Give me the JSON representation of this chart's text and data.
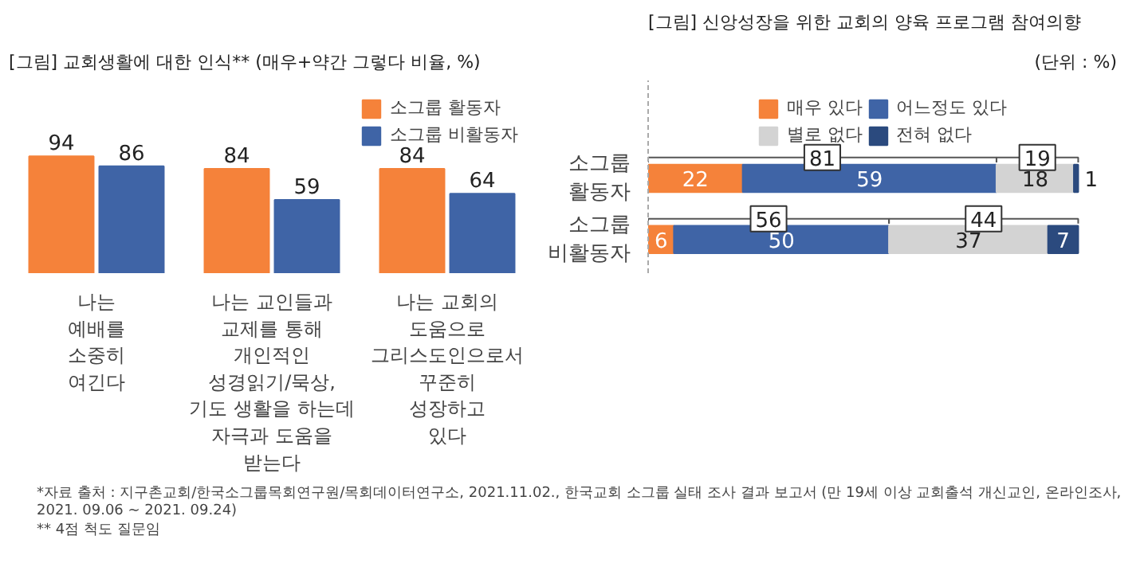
{
  "chart_data": [
    {
      "type": "bar",
      "title": "[그림] 교회생활에 대한 인식** (매우+약간 그렇다 비율, %)",
      "categories": [
        "나는\n예배를\n소중히\n여긴다",
        "나는 교인들과\n교제를 통해\n개인적인\n성경읽기/묵상,\n기도 생활을 하는데\n자극과 도움을\n받는다",
        "나는 교회의\n도움으로\n그리스도인으로서\n꾸준히\n성장하고\n있다"
      ],
      "series": [
        {
          "name": "소그룹 활동자",
          "color": "#f5823a",
          "values": [
            94,
            84,
            84
          ]
        },
        {
          "name": "소그룹 비활동자",
          "color": "#3f64a6",
          "values": [
            86,
            59,
            64
          ]
        }
      ],
      "data_labels": true,
      "legend": "top right",
      "annotations": [
        "*자료 출처 : 지구촌교회/한국소그룹목회연구원/목회데이터연구소, 2021.11.02., 한국교회 소그룹 실태 조사 결과 보고서 (만 19세 이상 교회출석 개신교인, 온라인조사, 2021. 09.06 ~ 2021. 09.24)",
        "** 4점 척도 질문임"
      ]
    },
    {
      "type": "bar",
      "orientation": "horizontal",
      "stacked": true,
      "title": "[그림] 신앙성장을 위한 교회의 양육 프로그램 참여의향",
      "subtitle": "(단위 : %)",
      "categories": [
        "소그룹\n활동자",
        "소그룹\n비활동자"
      ],
      "series": [
        {
          "name": "매우 있다",
          "color": "#f5823a",
          "values": [
            22,
            6
          ]
        },
        {
          "name": "어느정도 있다",
          "color": "#3f64a6",
          "values": [
            59,
            50
          ]
        },
        {
          "name": "별로 없다",
          "color": "#d3d3d3",
          "values": [
            18,
            37
          ]
        },
        {
          "name": "전혀 없다",
          "color": "#2b4a7e",
          "values": [
            1,
            7
          ]
        }
      ],
      "data_labels": true,
      "legend": "top",
      "annotations": [
        "81",
        "19",
        "56",
        "44"
      ]
    }
  ]
}
